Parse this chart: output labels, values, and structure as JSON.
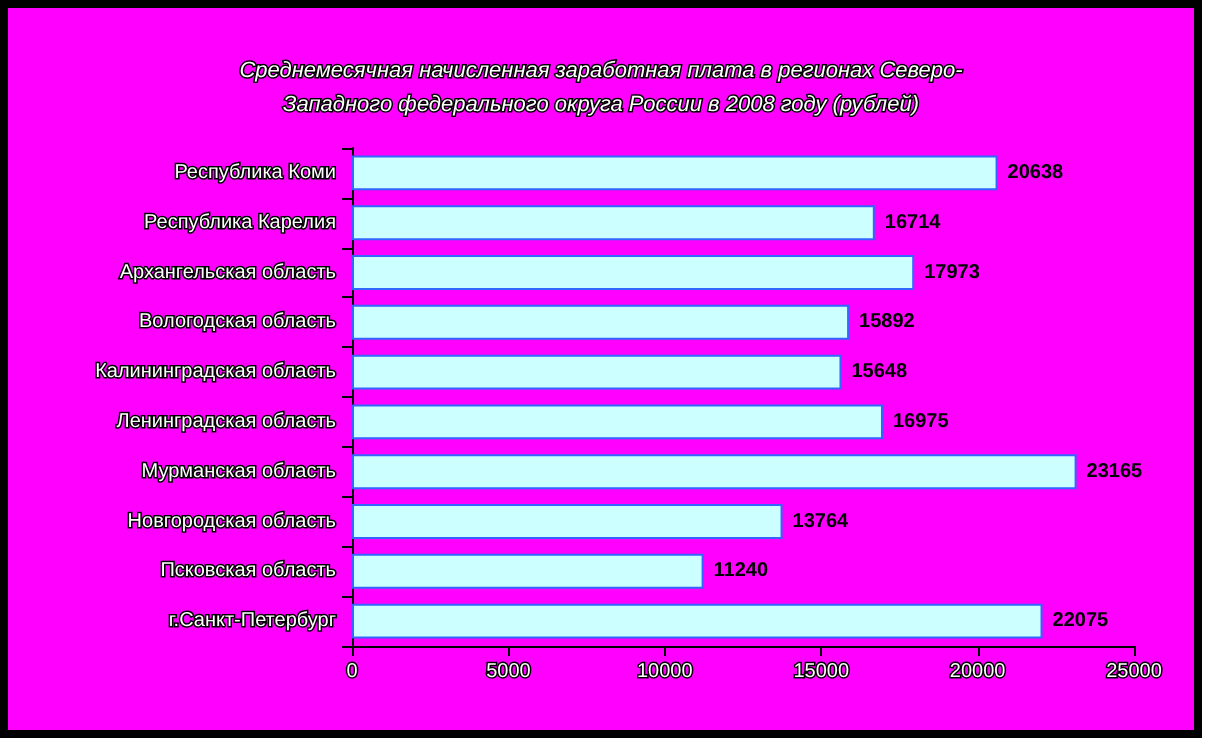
{
  "chart_data": {
    "type": "bar",
    "orientation": "horizontal",
    "title": "Среднемесячная начисленная заработная плата в регионах Северо-\nЗападного федерального округа России в 2008 году (рублей)",
    "categories": [
      "Республика Коми",
      "Республика Карелия",
      "Архангельская область",
      "Вологодская область",
      "Калининградская область",
      "Ленинградская область",
      "Мурманская область",
      "Новгородская область",
      "Псковская область",
      "г.Санкт-Петербург"
    ],
    "values": [
      20638,
      16714,
      17973,
      15892,
      15648,
      16975,
      23165,
      13764,
      11240,
      22075
    ],
    "color": "#ccffff",
    "xlim": [
      0,
      25000
    ],
    "xticks": [
      0,
      5000,
      10000,
      15000,
      20000,
      25000
    ],
    "grid": false,
    "data_labels": true
  }
}
